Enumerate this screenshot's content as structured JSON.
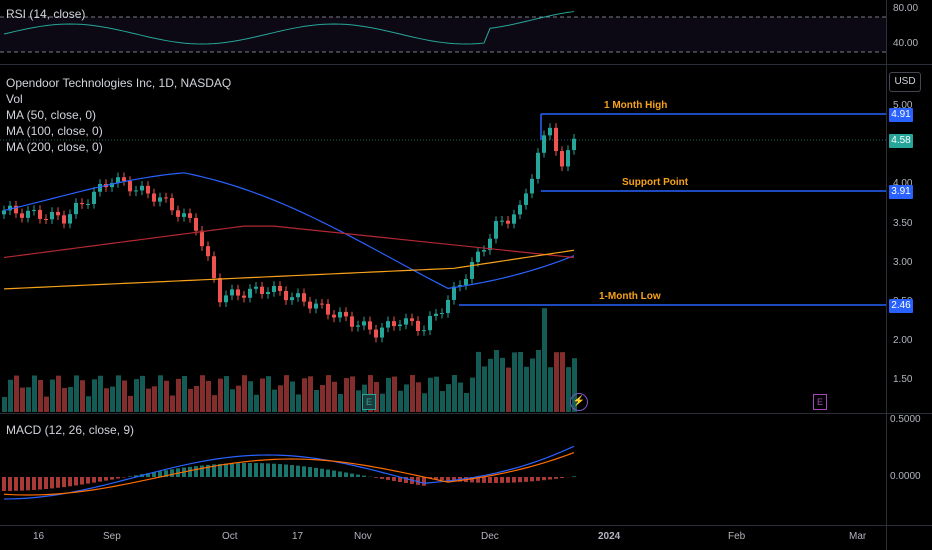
{
  "rsi": {
    "title": "RSI (14, close)",
    "ticks": [
      "80.00",
      "40.00"
    ]
  },
  "main": {
    "title": "Opendoor Technologies Inc, 1D, NASDAQ",
    "vol": "Vol",
    "ma50": "MA (50, close, 0)",
    "ma100": "MA (100, close, 0)",
    "ma200": "MA (200, close, 0)",
    "currency": "USD",
    "ticks": [
      "5.00",
      "4.50",
      "4.00",
      "3.50",
      "3.00",
      "2.50",
      "2.00",
      "1.50"
    ],
    "annotations": {
      "high": "1 Month High",
      "support": "Support Point",
      "low": "1-Month Low"
    },
    "price_tags": {
      "high": "4.91",
      "last": "4.58",
      "support": "3.91",
      "low": "2.46"
    },
    "badges": [
      "E",
      "E"
    ]
  },
  "macd": {
    "title": "MACD (12, 26, close, 9)",
    "ticks": [
      "0.5000",
      "0.0000"
    ]
  },
  "time_axis": [
    "16",
    "Sep",
    "Oct",
    "17",
    "Nov",
    "Dec",
    "2024",
    "Feb",
    "Mar"
  ],
  "colors": {
    "up": "#26a69a",
    "down": "#ef5350",
    "ma50": "#2962ff",
    "ma100": "#b22833",
    "ma200": "#f7a21b",
    "level": "#2962ff"
  }
}
